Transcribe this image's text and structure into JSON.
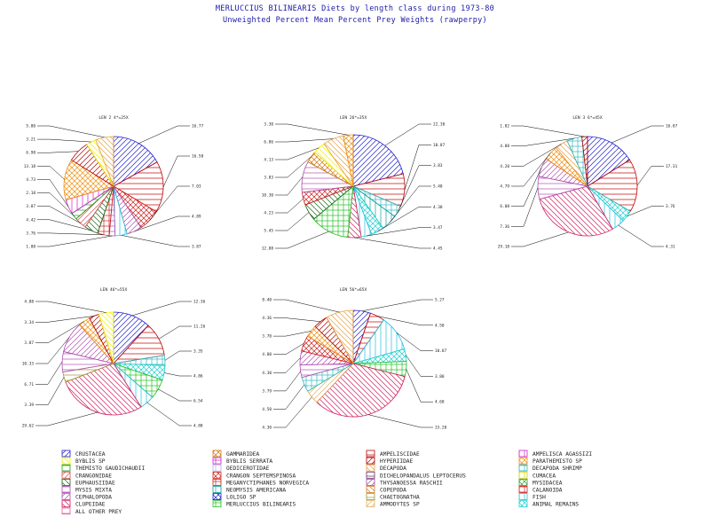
{
  "title": {
    "line1": "MERLUCCIUS BILINEARIS Diets by length class during 1973-80",
    "line2": "Unweighted Percent Mean Percent Prey Weights (rawperpy)"
  },
  "chart_data": {
    "type": "pie",
    "legend_position": "bottom",
    "categories": [
      "CRUSTACEA",
      "GAMMARIDEA",
      "AMPELISCIDAE",
      "AMPELISCA AGASSIZI",
      "BYBLIS SP",
      "BYBLIS SERRATA",
      "HYPERIIDAE",
      "PARATHEMISTO SP",
      "THEMISTO GAUDICHAUDII",
      "OEDICEROTIDAE",
      "DECAPODA",
      "DECAPODA SHRIMP",
      "CRANGONIDAE",
      "CRANGON SEPTEMSPINOSA",
      "DICHELOPANDALUS LEPTOCERUS",
      "CUMACEA",
      "EUPHAUSIIDAE",
      "MEGANYCTIPHANES NORVEGICA",
      "THYSANOESSA RASCHII",
      "MYSIDACEA",
      "MYSIS MIXTA",
      "NEOMYSIS AMERICANA",
      "COPEPODA",
      "CALANOIDA",
      "CEPHALOPODA",
      "LOLIGO SP",
      "CHAETOGNATHA",
      "FISH",
      "CLUPEIDAE",
      "MERLUCCIUS BILINEARIS",
      "AMMODYTES SP",
      "ANIMAL REMAINS",
      "ALL OTHER PREY"
    ],
    "colors": [
      "#1f1fd0",
      "#d07a10",
      "#c00000",
      "#d01fd0",
      "#f2f200",
      "#d01fd0",
      "#b00000",
      "#f09010",
      "#20a020",
      "#b0b0e0",
      "#e8a040",
      "#30b8c0",
      "#d05050",
      "#d02020",
      "#6a2a6a",
      "#d0d000",
      "#1a6a1a",
      "#d02020",
      "#a050a0",
      "#30a030",
      "#b050b0",
      "#10a0a0",
      "#d08030",
      "#d02020",
      "#b050b0",
      "#1a1ad0",
      "#9a9a30",
      "#20c0e0",
      "#d02060",
      "#20c020",
      "#e0b060",
      "#20d0d0",
      "#e060a0"
    ],
    "pies": [
      {
        "title": "LEN 2 4*=25X",
        "slices": [
          {
            "label": "CRUSTACEA",
            "value": 16.77
          },
          {
            "label": "AMPELISCIDAE",
            "value": 16.5
          },
          {
            "label": "CRANGON SEPTEMSPINOSA",
            "value": 7.03
          },
          {
            "label": "CEPHALOPODA",
            "value": 4.89
          },
          {
            "label": "FISH",
            "value": 3.87
          },
          {
            "label": "MYSIS MIXTA",
            "value": 1.88
          },
          {
            "label": "MEGANYCTIPHANES NORVEGICA",
            "value": 3.76
          },
          {
            "label": "EUPHAUSIIDAE",
            "value": 4.42
          },
          {
            "label": "CRANGONIDAE",
            "value": 3.87
          },
          {
            "label": "THEMISTO GAUDICHAUDII",
            "value": 2.18
          },
          {
            "label": "AMPELISCA AGASSIZI",
            "value": 4.73
          },
          {
            "label": "PARATHEMISTO SP",
            "value": 13.18
          },
          {
            "label": "HYPERIIDAE",
            "value": 6.98
          },
          {
            "label": "BYBLIS SP",
            "value": 3.21
          },
          {
            "label": "DECAPODA",
            "value": 5.8
          }
        ]
      },
      {
        "title": "LEN 26*=35X",
        "slices": [
          {
            "label": "CRUSTACEA",
            "value": 22.3
          },
          {
            "label": "AMPELISCIDAE",
            "value": 10.87
          },
          {
            "label": "DECAPODA SHRIMP",
            "value": 3.83
          },
          {
            "label": "NEOMYSIS AMERICANA",
            "value": 5.4
          },
          {
            "label": "ANIMAL REMAINS",
            "value": 4.3
          },
          {
            "label": "FISH",
            "value": 3.47
          },
          {
            "label": "CLUPEIDAE",
            "value": 4.45
          },
          {
            "label": "MERLUCCIUS BILINEARIS",
            "value": 12.88
          },
          {
            "label": "EUPHAUSIIDAE",
            "value": 5.45
          },
          {
            "label": "CRANGON SEPTEMSPINOSA",
            "value": 4.23
          },
          {
            "label": "MYSIS MIXTA",
            "value": 10.3
          },
          {
            "label": "GAMMARIDEA",
            "value": 3.83
          },
          {
            "label": "BYBLIS SP",
            "value": 4.13
          },
          {
            "label": "DECAPODA",
            "value": 6.86
          },
          {
            "label": "PARATHEMISTO SP",
            "value": 3.3
          }
        ]
      },
      {
        "title": "LEN 3 6*=45X",
        "slices": [
          {
            "label": "CRUSTACEA",
            "value": 16.07
          },
          {
            "label": "AMPELISCIDAE",
            "value": 17.31
          },
          {
            "label": "ANIMAL REMAINS",
            "value": 3.76
          },
          {
            "label": "FISH",
            "value": 4.31
          },
          {
            "label": "CLUPEIDAE",
            "value": 29.18
          },
          {
            "label": "MYSIS MIXTA",
            "value": 7.36
          },
          {
            "label": "CEPHALOPODA",
            "value": 6.08
          },
          {
            "label": "PARATHEMISTO SP",
            "value": 4.79
          },
          {
            "label": "DECAPODA",
            "value": 4.2
          },
          {
            "label": "DECAPODA SHRIMP",
            "value": 4.88
          },
          {
            "label": "HYPERIIDAE",
            "value": 1.82
          }
        ]
      },
      {
        "title": "LEN 46*=55X",
        "slices": [
          {
            "label": "CRUSTACEA",
            "value": 12.36
          },
          {
            "label": "AMPELISCIDAE",
            "value": 11.26
          },
          {
            "label": "DECAPODA SHRIMP",
            "value": 3.35
          },
          {
            "label": "ANIMAL REMAINS",
            "value": 4.86
          },
          {
            "label": "MERLUCCIUS BILINEARIS",
            "value": 6.54
          },
          {
            "label": "FISH",
            "value": 4.88
          },
          {
            "label": "CLUPEIDAE",
            "value": 29.62
          },
          {
            "label": "CHAETOGNATHA",
            "value": 3.39
          },
          {
            "label": "MYSIS MIXTA",
            "value": 6.71
          },
          {
            "label": "CEPHALOPODA",
            "value": 10.33
          },
          {
            "label": "PARATHEMISTO SP",
            "value": 3.87
          },
          {
            "label": "HYPERIIDAE",
            "value": 3.34
          },
          {
            "label": "BYBLIS SP",
            "value": 4.88
          }
        ]
      },
      {
        "title": "LEN 56*=65X",
        "slices": [
          {
            "label": "CRUSTACEA",
            "value": 5.27
          },
          {
            "label": "AMPELISCIDAE",
            "value": 4.5
          },
          {
            "label": "FISH",
            "value": 10.87
          },
          {
            "label": "ANIMAL REMAINS",
            "value": 3.8
          },
          {
            "label": "MERLUCCIUS BILINEARIS",
            "value": 4.6
          },
          {
            "label": "CLUPEIDAE",
            "value": 33.2
          },
          {
            "label": "AMMODYTES SP",
            "value": 4.3
          },
          {
            "label": "DECAPODA SHRIMP",
            "value": 4.5
          },
          {
            "label": "MYSIS MIXTA",
            "value": 3.79
          },
          {
            "label": "CEPHALOPODA",
            "value": 4.3
          },
          {
            "label": "CRANGON SEPTEMSPINOSA",
            "value": 4.8
          },
          {
            "label": "PARATHEMISTO SP",
            "value": 3.7
          },
          {
            "label": "HYPERIIDAE",
            "value": 4.36
          },
          {
            "label": "DECAPODA",
            "value": 8.4
          }
        ]
      }
    ]
  }
}
